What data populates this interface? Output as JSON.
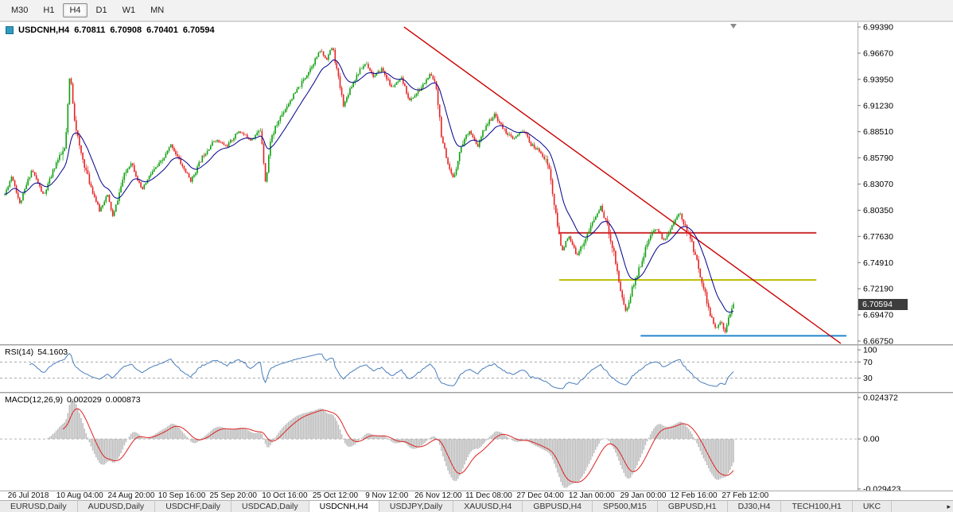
{
  "toolbar": {
    "timeframes": [
      {
        "label": "M30",
        "active": false
      },
      {
        "label": "H1",
        "active": false
      },
      {
        "label": "H4",
        "active": true
      },
      {
        "label": "D1",
        "active": false
      },
      {
        "label": "W1",
        "active": false
      },
      {
        "label": "MN",
        "active": false
      }
    ]
  },
  "chart_title": {
    "symbol": "USDCNH,H4",
    "open": "6.70811",
    "high": "6.70908",
    "low": "6.70401",
    "close": "6.70594"
  },
  "indicators": {
    "rsi_label": "RSI(14)",
    "rsi_value": "54.1603",
    "macd_label": "MACD(12,26,9)",
    "macd_main": "0.002029",
    "macd_signal": "0.000873"
  },
  "price_badge": "6.70594",
  "tabs": {
    "items": [
      {
        "label": "EURUSD,Daily",
        "active": false
      },
      {
        "label": "AUDUSD,Daily",
        "active": false
      },
      {
        "label": "USDCHF,Daily",
        "active": false
      },
      {
        "label": "USDCAD,Daily",
        "active": false
      },
      {
        "label": "USDCNH,H4",
        "active": true
      },
      {
        "label": "USDJPY,Daily",
        "active": false
      },
      {
        "label": "XAUUSD,H4",
        "active": false
      },
      {
        "label": "GBPUSD,H4",
        "active": false
      },
      {
        "label": "SP500,M15",
        "active": false
      },
      {
        "label": "GBPUSD,H1",
        "active": false
      },
      {
        "label": "DJ30,H4",
        "active": false
      },
      {
        "label": "TECH100,H1",
        "active": false
      },
      {
        "label": "UKC",
        "active": false
      }
    ],
    "scroll_right_icon": "▸"
  },
  "chart_data": {
    "type": "candlestick",
    "symbol": "USDCNH",
    "timeframe": "H4",
    "seed": 11,
    "current_ohlc": {
      "open": 6.70811,
      "high": 6.70908,
      "low": 6.70401,
      "close": 6.70594
    },
    "colors": {
      "up": "#0fa00f",
      "down": "#e62222",
      "ma": "#00008b",
      "trend": "#cc0000",
      "rsi": "#4a7ebb",
      "macd_hist": "#bdbdbd",
      "macd_signal": "#dd2222"
    },
    "price_axis": {
      "top": 6.9939,
      "bottom": 6.6675,
      "labels": [
        "6.99390",
        "6.96670",
        "6.93950",
        "6.91230",
        "6.88510",
        "6.85790",
        "6.83070",
        "6.80350",
        "6.77630",
        "6.74910",
        "6.72190",
        "6.69470",
        "6.66750"
      ]
    },
    "time_axis": {
      "labels": [
        {
          "text": "26 Jul 2018",
          "f": 0.033
        },
        {
          "text": "10 Aug 04:00",
          "f": 0.093
        },
        {
          "text": "24 Aug 20:00",
          "f": 0.153
        },
        {
          "text": "10 Sep 16:00",
          "f": 0.212
        },
        {
          "text": "25 Sep 20:00",
          "f": 0.272
        },
        {
          "text": "10 Oct 16:00",
          "f": 0.332
        },
        {
          "text": "25 Oct 12:00",
          "f": 0.391
        },
        {
          "text": "9 Nov 12:00",
          "f": 0.451
        },
        {
          "text": "26 Nov 12:00",
          "f": 0.511
        },
        {
          "text": "11 Dec 08:00",
          "f": 0.57
        },
        {
          "text": "27 Dec 04:00",
          "f": 0.63
        },
        {
          "text": "12 Jan 00:00",
          "f": 0.69
        },
        {
          "text": "29 Jan 00:00",
          "f": 0.75
        },
        {
          "text": "12 Feb 16:00",
          "f": 0.809
        },
        {
          "text": "27 Feb 12:00",
          "f": 0.869
        }
      ]
    },
    "candle_region": {
      "from": 0.0056,
      "to": 0.8553,
      "bars": 440
    },
    "price_path": [
      [
        0.0,
        6.82
      ],
      [
        0.0098,
        6.84
      ],
      [
        0.0207,
        6.81
      ],
      [
        0.0371,
        6.846
      ],
      [
        0.0535,
        6.818
      ],
      [
        0.0699,
        6.852
      ],
      [
        0.083,
        6.868
      ],
      [
        0.0895,
        6.948
      ],
      [
        0.095,
        6.902
      ],
      [
        0.1026,
        6.868
      ],
      [
        0.1157,
        6.834
      ],
      [
        0.1299,
        6.803
      ],
      [
        0.1408,
        6.82
      ],
      [
        0.1485,
        6.796
      ],
      [
        0.1627,
        6.838
      ],
      [
        0.1736,
        6.854
      ],
      [
        0.1878,
        6.824
      ],
      [
        0.2009,
        6.842
      ],
      [
        0.2172,
        6.856
      ],
      [
        0.2282,
        6.872
      ],
      [
        0.2424,
        6.851
      ],
      [
        0.2555,
        6.834
      ],
      [
        0.2718,
        6.86
      ],
      [
        0.2882,
        6.877
      ],
      [
        0.3046,
        6.87
      ],
      [
        0.321,
        6.886
      ],
      [
        0.3373,
        6.877
      ],
      [
        0.3515,
        6.887
      ],
      [
        0.3581,
        6.83
      ],
      [
        0.3646,
        6.877
      ],
      [
        0.3777,
        6.9
      ],
      [
        0.3919,
        6.918
      ],
      [
        0.4061,
        6.934
      ],
      [
        0.4214,
        6.954
      ],
      [
        0.4334,
        6.97
      ],
      [
        0.441,
        6.96
      ],
      [
        0.4498,
        6.974
      ],
      [
        0.4574,
        6.942
      ],
      [
        0.4651,
        6.912
      ],
      [
        0.4738,
        6.93
      ],
      [
        0.4847,
        6.946
      ],
      [
        0.4956,
        6.957
      ],
      [
        0.5066,
        6.942
      ],
      [
        0.5175,
        6.951
      ],
      [
        0.5306,
        6.931
      ],
      [
        0.5448,
        6.94
      ],
      [
        0.5557,
        6.917
      ],
      [
        0.5699,
        6.929
      ],
      [
        0.583,
        6.944
      ],
      [
        0.5917,
        6.936
      ],
      [
        0.5993,
        6.882
      ],
      [
        0.607,
        6.851
      ],
      [
        0.6157,
        6.836
      ],
      [
        0.6266,
        6.871
      ],
      [
        0.6375,
        6.887
      ],
      [
        0.6485,
        6.869
      ],
      [
        0.6594,
        6.891
      ],
      [
        0.6725,
        6.903
      ],
      [
        0.6834,
        6.889
      ],
      [
        0.6976,
        6.877
      ],
      [
        0.7118,
        6.887
      ],
      [
        0.7227,
        6.871
      ],
      [
        0.7358,
        6.864
      ],
      [
        0.7467,
        6.849
      ],
      [
        0.7555,
        6.801
      ],
      [
        0.7642,
        6.762
      ],
      [
        0.774,
        6.776
      ],
      [
        0.7849,
        6.757
      ],
      [
        0.7959,
        6.772
      ],
      [
        0.8068,
        6.791
      ],
      [
        0.8177,
        6.807
      ],
      [
        0.8264,
        6.789
      ],
      [
        0.8362,
        6.759
      ],
      [
        0.845,
        6.721
      ],
      [
        0.8526,
        6.697
      ],
      [
        0.8614,
        6.723
      ],
      [
        0.8723,
        6.747
      ],
      [
        0.8832,
        6.772
      ],
      [
        0.8941,
        6.786
      ],
      [
        0.905,
        6.771
      ],
      [
        0.9159,
        6.789
      ],
      [
        0.9268,
        6.801
      ],
      [
        0.9345,
        6.785
      ],
      [
        0.9432,
        6.769
      ],
      [
        0.952,
        6.744
      ],
      [
        0.9607,
        6.718
      ],
      [
        0.9683,
        6.694
      ],
      [
        0.976,
        6.679
      ],
      [
        0.9825,
        6.689
      ],
      [
        0.988,
        6.677
      ],
      [
        0.9934,
        6.694
      ],
      [
        1.0,
        6.7059
      ]
    ],
    "overlays": {
      "trendline": {
        "name": "descending-trendline",
        "color": "#cc0000",
        "from": [
          0.4712,
          6.9939
        ],
        "to": [
          0.9805,
          6.665
        ]
      },
      "hlines": [
        {
          "name": "resistance-line-red",
          "price": 6.78,
          "from": 0.651,
          "to": 0.952,
          "color": "#cc3333"
        },
        {
          "name": "support-line-yellow",
          "price": 6.731,
          "from": 0.652,
          "to": 0.952,
          "color": "#bdbd00"
        },
        {
          "name": "support-line-blue",
          "price": 6.673,
          "from": 0.747,
          "to": 0.987,
          "color": "#2288cc"
        }
      ]
    },
    "rsi": {
      "period": 14,
      "value": 54.1603,
      "levels": [
        70,
        30
      ],
      "axis_labels": [
        {
          "text": "100",
          "v": 100
        },
        {
          "text": "70",
          "v": 70
        },
        {
          "text": "30",
          "v": 30
        }
      ]
    },
    "macd": {
      "fast": 12,
      "slow": 26,
      "signal": 9,
      "main_value": 0.002029,
      "signal_value": 0.000873,
      "max": 0.024372,
      "min": -0.029423,
      "axis_labels": [
        {
          "text": "0.024372",
          "v": 0.024372
        },
        {
          "text": "0.00",
          "v": 0
        },
        {
          "text": "-0.029423",
          "v": -0.029423
        }
      ]
    }
  }
}
